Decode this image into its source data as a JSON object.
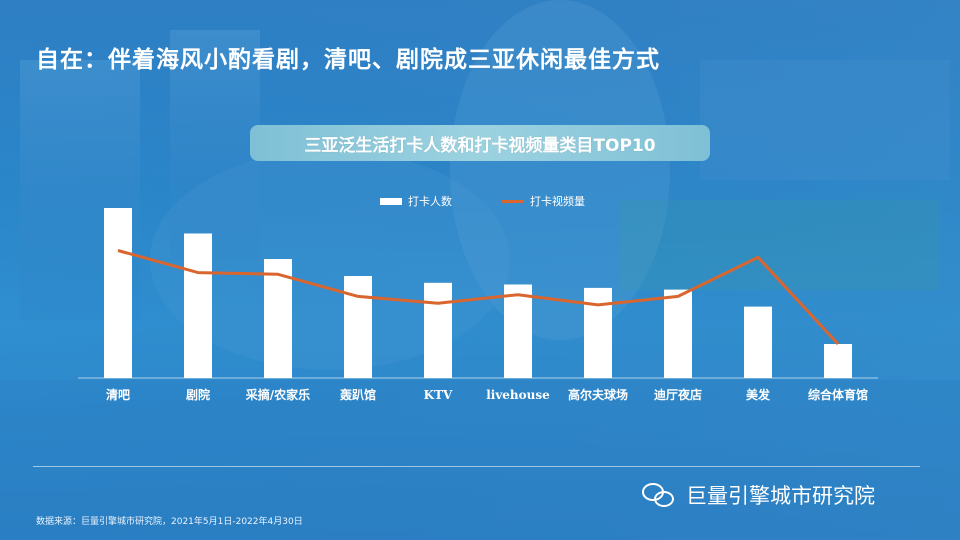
{
  "headline": "自在：伴着海风小酌看剧，清吧、剧院成三亚休闲最佳方式",
  "chart_data": {
    "type": "bar",
    "title": "三亚泛生活打卡人数和打卡视频量类目TOP10",
    "categories": [
      "清吧",
      "剧院",
      "采摘/农家乐",
      "轰趴馆",
      "KTV",
      "livehouse",
      "高尔夫球场",
      "迪厅夜店",
      "美发",
      "综合体育馆"
    ],
    "series": [
      {
        "name": "打卡人数",
        "kind": "bar",
        "values": [
          100,
          85,
          70,
          60,
          56,
          55,
          53,
          52,
          42,
          20
        ]
      },
      {
        "name": "打卡视频量",
        "kind": "line",
        "values": [
          75,
          62,
          61,
          48,
          44,
          49,
          43,
          48,
          71,
          20
        ]
      }
    ],
    "ylim": [
      0,
      110
    ],
    "grid": false,
    "legend_position": "top-center",
    "colors": {
      "bar": "#ffffff",
      "line": "#d9652f"
    }
  },
  "footer": {
    "source": "数据来源：巨量引擎城市研究院，2021年5月1日-2022年4月30日",
    "brand": "巨量引擎城市研究院"
  },
  "icons": {
    "brand_icon": "wechat-icon"
  }
}
